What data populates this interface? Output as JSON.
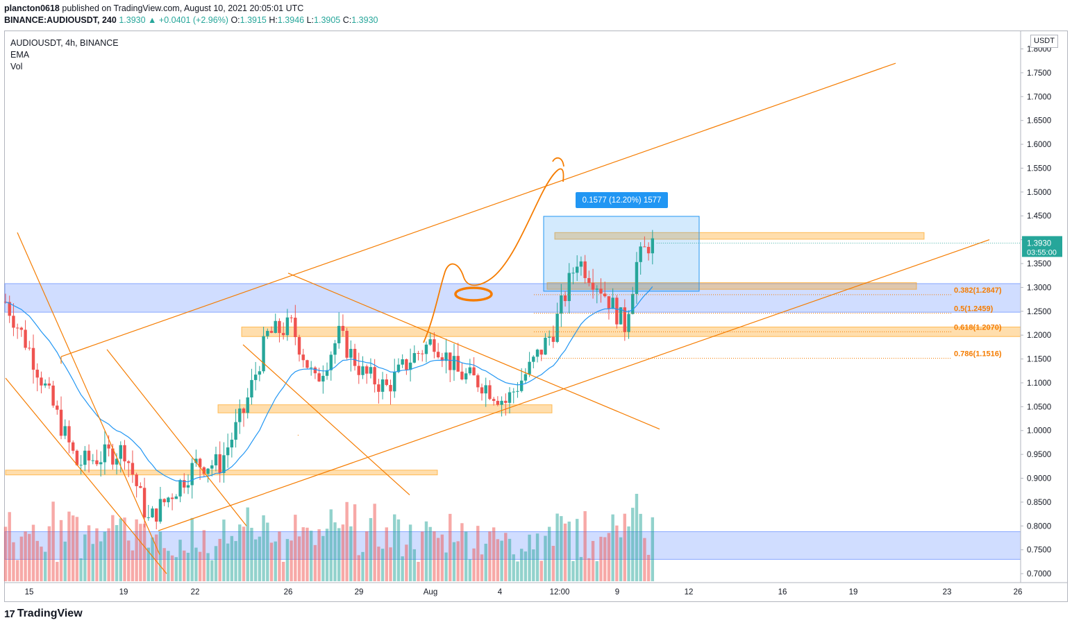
{
  "header": {
    "author": "plancton0618",
    "published_text": "published on TradingView.com, August 10, 2021 20:05:01 UTC",
    "symbol_line": "BINANCE:AUDIOUSDT, 240",
    "last_price": "1.3930",
    "change": "▲ +0.0401 (+2.96%)",
    "o_label": "O:",
    "o_value": "1.3915",
    "h_label": "H:",
    "h_value": "1.3946",
    "l_label": "L:",
    "l_value": "1.3905",
    "c_label": "C:",
    "c_value": "1.3930"
  },
  "legend": {
    "title": "AUDIOUSDT, 4h, BINANCE",
    "ema": "EMA",
    "vol": "Vol"
  },
  "axis": {
    "currency": "USDT",
    "price_tag": "1.3930",
    "countdown": "03:55:00"
  },
  "measure_label": "0.1577 (12.20%) 1577",
  "fib_labels": [
    "0.382(1.2847)",
    "0.5(1.2459)",
    "0.618(1.2070)",
    "0.786(1.1516)"
  ],
  "footer": {
    "brand": "TradingView"
  },
  "colors": {
    "up": "#26a69a",
    "down": "#ef5350",
    "ema": "#2196f3",
    "drawing": "#f57c00",
    "zone_blue": "#2962ff",
    "zone_orange": "#ff9800"
  },
  "chart_data": {
    "type": "candlestick",
    "y_ticks": [
      "1.8000",
      "1.7500",
      "1.7000",
      "1.6500",
      "1.6000",
      "1.5500",
      "1.5000",
      "1.4500",
      "1.4000",
      "1.3500",
      "1.3000",
      "1.2500",
      "1.2000",
      "1.1500",
      "1.1000",
      "1.0500",
      "1.0000",
      "0.9500",
      "0.9000",
      "0.8500",
      "0.8000",
      "0.7500",
      "0.7000"
    ],
    "x_ticks": [
      "15",
      "19",
      "22",
      "26",
      "29",
      "Aug",
      "4",
      "12:00",
      "9",
      "12",
      "16",
      "19",
      "23",
      "26"
    ],
    "ylim": [
      0.68,
      1.81
    ],
    "anchors_price": [
      {
        "x": "Jul 14",
        "price": 1.27
      },
      {
        "x": "Jul 15",
        "price": 1.17
      },
      {
        "x": "Jul 17",
        "price": 0.93
      },
      {
        "x": "Jul 19",
        "price": 0.96
      },
      {
        "x": "Jul 20",
        "price": 0.81
      },
      {
        "x": "Jul 22",
        "price": 0.93
      },
      {
        "x": "Jul 23",
        "price": 0.93
      },
      {
        "x": "Jul 24",
        "price": 1.04
      },
      {
        "x": "Jul 25",
        "price": 1.2
      },
      {
        "x": "Jul 26",
        "price": 1.22
      },
      {
        "x": "Jul 27",
        "price": 1.1
      },
      {
        "x": "Jul 28",
        "price": 1.2
      },
      {
        "x": "Jul 29",
        "price": 1.12
      },
      {
        "x": "Jul 30",
        "price": 1.09
      },
      {
        "x": "Jul 31",
        "price": 1.15
      },
      {
        "x": "Aug 1",
        "price": 1.19
      },
      {
        "x": "Aug 2",
        "price": 1.12
      },
      {
        "x": "Aug 3",
        "price": 1.1
      },
      {
        "x": "Aug 4",
        "price": 1.06
      },
      {
        "x": "Aug 5",
        "price": 1.13
      },
      {
        "x": "Aug 6",
        "price": 1.21
      },
      {
        "x": "Aug 7",
        "price": 1.36
      },
      {
        "x": "Aug 8",
        "price": 1.3
      },
      {
        "x": "Aug 9",
        "price": 1.22
      },
      {
        "x": "Aug 9 12:00",
        "price": 1.35
      },
      {
        "x": "Aug 10",
        "price": 1.39
      }
    ]
  }
}
